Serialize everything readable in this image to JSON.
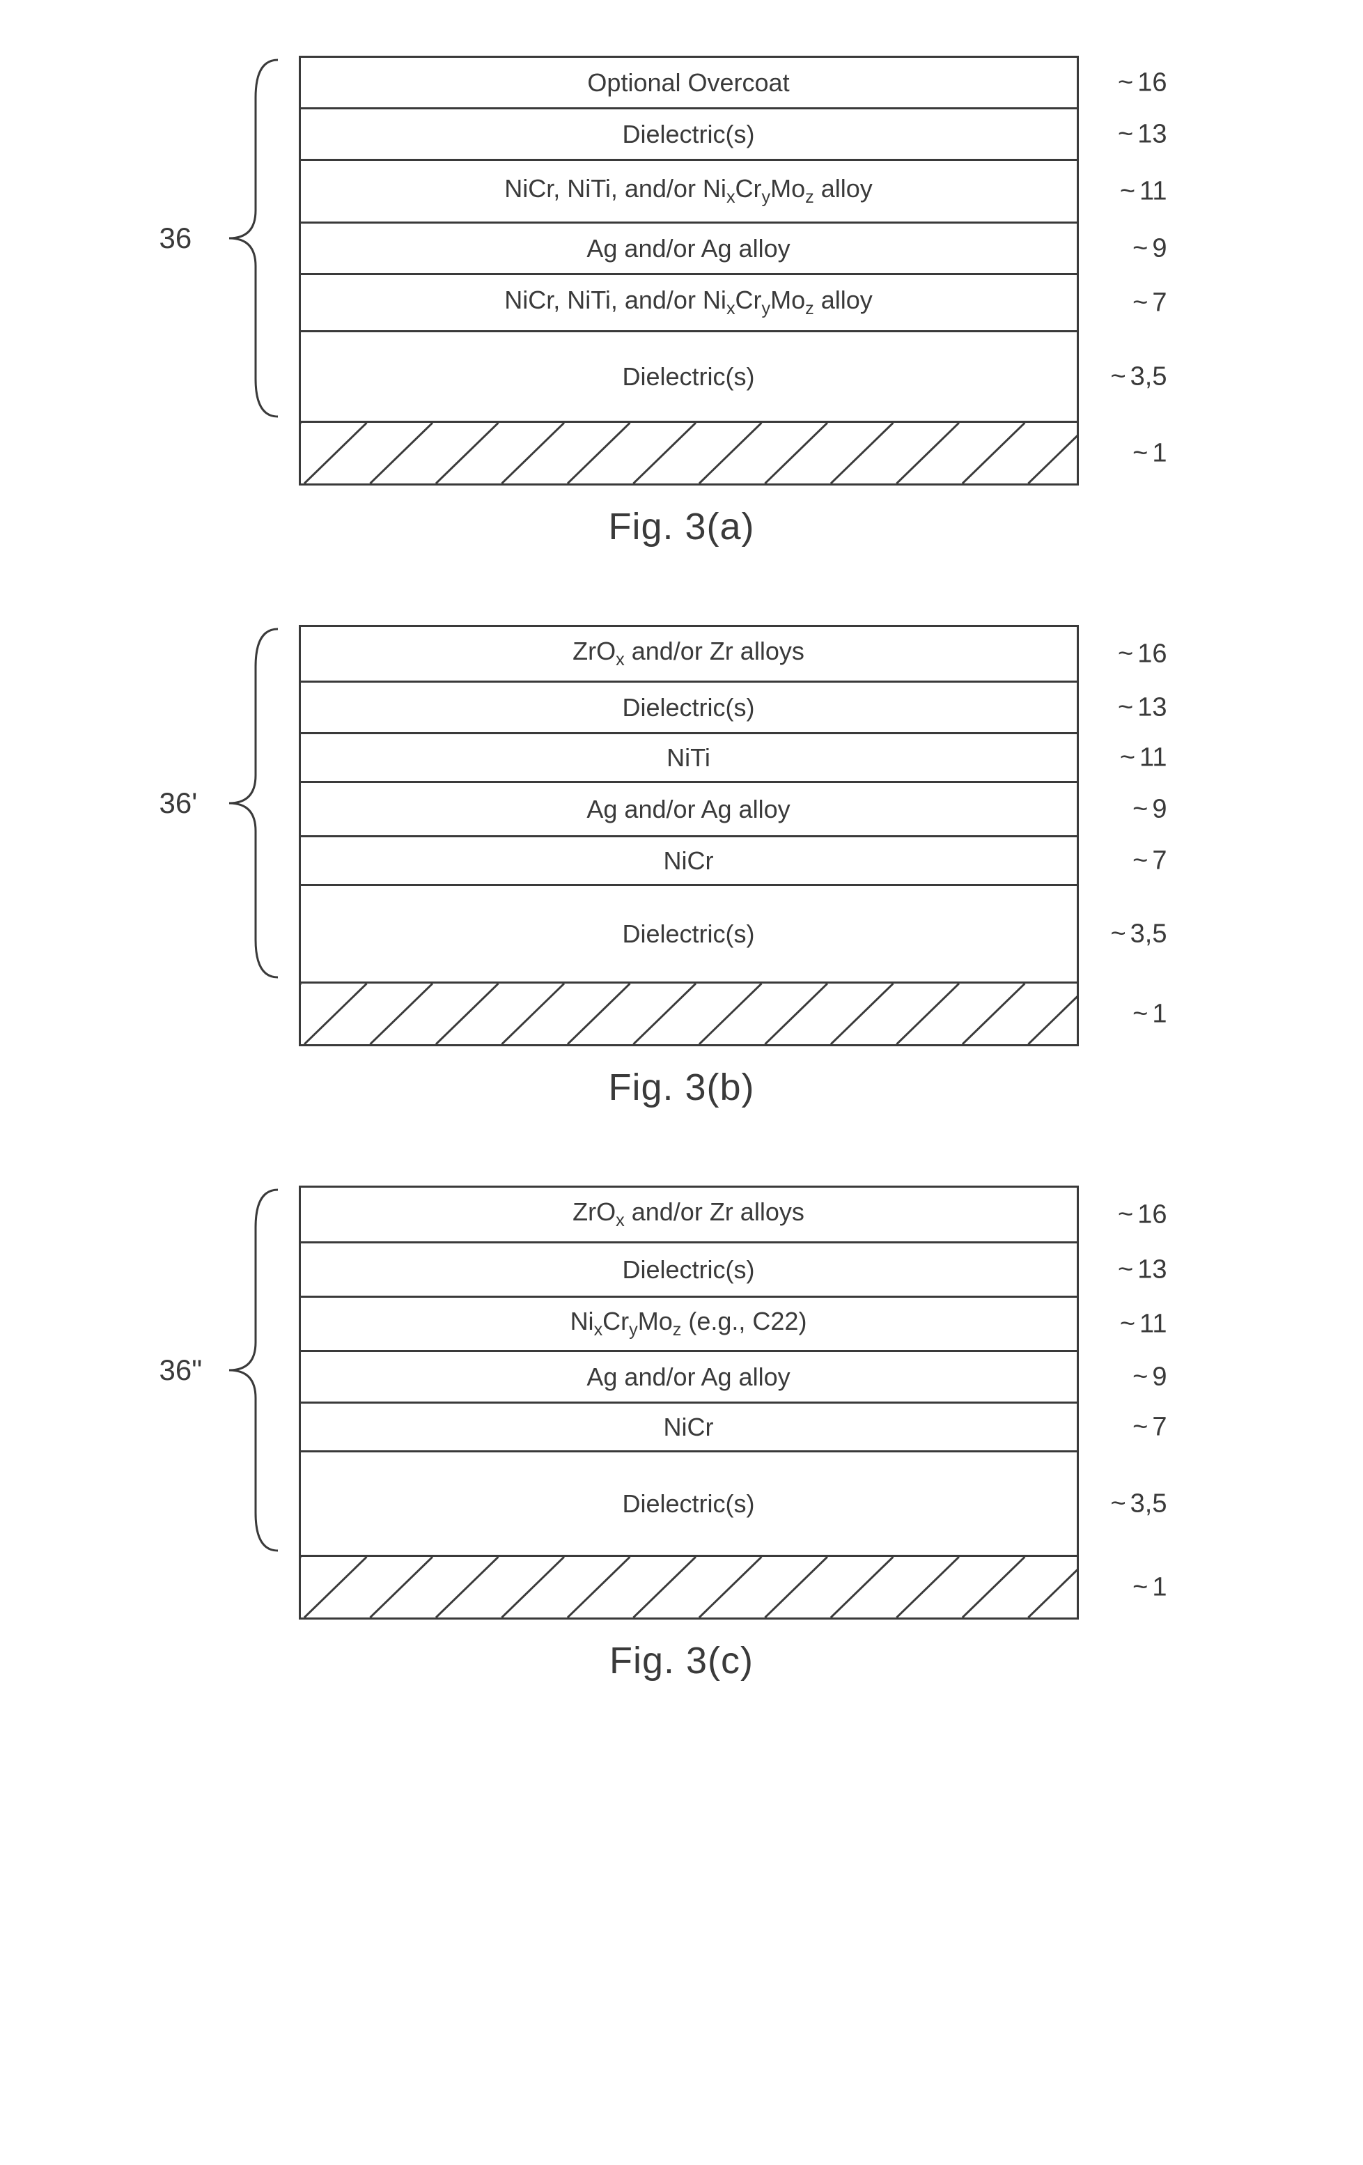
{
  "figures": [
    {
      "id": "a",
      "bracket_label": "36",
      "caption": "Fig. 3(a)",
      "layers": [
        {
          "text": "Optional Overcoat",
          "height": 74,
          "num": "16"
        },
        {
          "text": "Dielectric(s)",
          "height": 74,
          "num": "13"
        },
        {
          "html": "NiCr, NiTi, and/or Ni<sub>x</sub>Cr<sub>y</sub>Mo<sub>z</sub> alloy",
          "height": 90,
          "num": "11"
        },
        {
          "text": "Ag and/or Ag alloy",
          "height": 74,
          "num": "9"
        },
        {
          "html": "NiCr, NiTi, and/or Ni<sub>x</sub>Cr<sub>y</sub>Mo<sub>z</sub> alloy",
          "height": 82,
          "num": "7"
        },
        {
          "text": "Dielectric(s)",
          "height": 130,
          "num": "3,5"
        },
        {
          "hatched": true,
          "height": 90,
          "num": "1"
        }
      ]
    },
    {
      "id": "b",
      "bracket_label": "36'",
      "caption": "Fig. 3(b)",
      "layers": [
        {
          "html": "ZrO<sub>x</sub> and/or Zr alloys",
          "height": 80,
          "num": "16"
        },
        {
          "text": "Dielectric(s)",
          "height": 74,
          "num": "13"
        },
        {
          "text": "NiTi",
          "height": 70,
          "num": "11"
        },
        {
          "text": "Ag and/or Ag alloy",
          "height": 78,
          "num": "9"
        },
        {
          "text": "NiCr",
          "height": 70,
          "num": "7"
        },
        {
          "text": "Dielectric(s)",
          "height": 140,
          "num": "3,5"
        },
        {
          "hatched": true,
          "height": 90,
          "num": "1"
        }
      ]
    },
    {
      "id": "c",
      "bracket_label": "36\"",
      "caption": "Fig. 3(c)",
      "layers": [
        {
          "html": "ZrO<sub>x</sub> and/or Zr alloys",
          "height": 80,
          "num": "16"
        },
        {
          "text": "Dielectric(s)",
          "height": 78,
          "num": "13"
        },
        {
          "html": "Ni<sub>x</sub>Cr<sub>y</sub>Mo<sub>z</sub> (e.g., C22)",
          "height": 78,
          "num": "11"
        },
        {
          "text": "Ag and/or Ag alloy",
          "height": 74,
          "num": "9"
        },
        {
          "text": "NiCr",
          "height": 70,
          "num": "7"
        },
        {
          "text": "Dielectric(s)",
          "height": 150,
          "num": "3,5"
        },
        {
          "hatched": true,
          "height": 90,
          "num": "1"
        }
      ]
    }
  ],
  "style": {
    "border_color": "#3a3a3a",
    "text_color": "#3a3a3a",
    "bg": "#ffffff"
  }
}
